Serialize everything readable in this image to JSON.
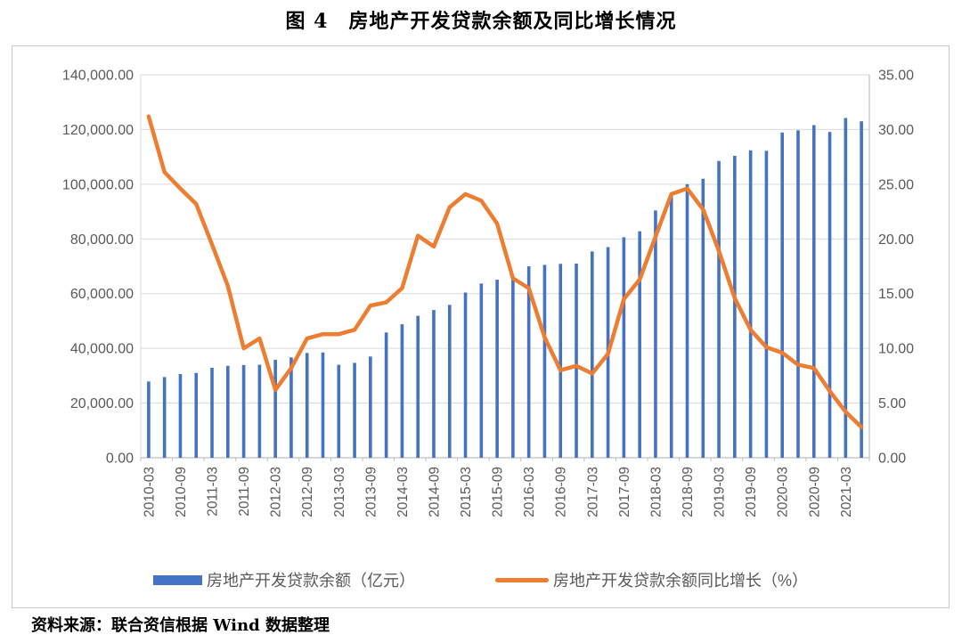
{
  "page": {
    "title": "图 4　房地产开发贷款余额及同比增长情况",
    "source_note": "资料来源：联合资信根据 Wind 数据整理"
  },
  "colors": {
    "bar": "#4472C4",
    "line": "#ED7D31",
    "gridline": "#D9D9D9",
    "axis_line": "#BFBFBF",
    "tick_text": "#595959",
    "chart_border": "#C8C8C8"
  },
  "chart_data": {
    "type": "bar",
    "subtype": "combo-bar-line-dual-axis",
    "title": "图 4　房地产开发贷款余额及同比增长情况",
    "grid": true,
    "legend_position": "bottom",
    "categories": [
      "2010-03",
      "2010-06",
      "2010-09",
      "2010-12",
      "2011-03",
      "2011-06",
      "2011-09",
      "2011-12",
      "2012-03",
      "2012-06",
      "2012-09",
      "2012-12",
      "2013-03",
      "2013-06",
      "2013-09",
      "2013-12",
      "2014-03",
      "2014-06",
      "2014-09",
      "2014-12",
      "2015-03",
      "2015-06",
      "2015-09",
      "2015-12",
      "2016-03",
      "2016-06",
      "2016-09",
      "2016-12",
      "2017-03",
      "2017-06",
      "2017-09",
      "2017-12",
      "2018-03",
      "2018-06",
      "2018-09",
      "2018-12",
      "2019-03",
      "2019-06",
      "2019-09",
      "2019-12",
      "2020-03",
      "2020-06",
      "2020-09",
      "2020-12",
      "2021-03",
      "2021-06"
    ],
    "x_tick_labels": [
      "2010-03",
      "2010-09",
      "2011-03",
      "2011-09",
      "2012-03",
      "2012-09",
      "2013-03",
      "2013-09",
      "2014-03",
      "2014-09",
      "2015-03",
      "2015-09",
      "2016-03",
      "2016-09",
      "2017-03",
      "2017-09",
      "2018-03",
      "2018-09",
      "2019-03",
      "2019-09",
      "2020-03",
      "2020-09",
      "2021-03"
    ],
    "series": [
      {
        "name": "房地产开发贷款余额（亿元）",
        "type": "bar",
        "axis": "left",
        "color": "#4472C4",
        "values": [
          27900,
          29500,
          30600,
          31000,
          32900,
          33600,
          33900,
          34000,
          35800,
          36700,
          38300,
          38500,
          34000,
          34700,
          37000,
          45800,
          48800,
          51900,
          54000,
          55900,
          60400,
          63700,
          65100,
          66200,
          70000,
          70500,
          70900,
          71000,
          75400,
          77000,
          80600,
          82800,
          90400,
          96600,
          100000,
          102000,
          108500,
          110400,
          112400,
          112200,
          118900,
          119700,
          121600,
          119100,
          124200,
          123000
        ]
      },
      {
        "name": "房地产开发贷款余额同比增长（%）",
        "type": "line",
        "axis": "right",
        "color": "#ED7D31",
        "values": [
          31.2,
          26.1,
          24.6,
          23.2,
          19.5,
          15.7,
          10.0,
          10.9,
          6.2,
          8.2,
          10.9,
          11.3,
          11.3,
          11.7,
          13.9,
          14.2,
          15.5,
          20.3,
          19.3,
          22.9,
          24.1,
          23.5,
          21.4,
          16.4,
          15.5,
          11.0,
          8.0,
          8.4,
          7.7,
          9.5,
          14.5,
          16.3,
          20.2,
          24.1,
          24.6,
          22.7,
          18.9,
          14.6,
          11.7,
          10.1,
          9.6,
          8.5,
          8.2,
          6.1,
          4.2,
          2.8
        ]
      }
    ],
    "left_axis": {
      "min": 0,
      "max": 140000,
      "step": 20000,
      "tick_labels": [
        "0.00",
        "20,000.00",
        "40,000.00",
        "60,000.00",
        "80,000.00",
        "100,000.00",
        "120,000.00",
        "140,000.00"
      ]
    },
    "right_axis": {
      "min": 0,
      "max": 35,
      "step": 5,
      "tick_labels": [
        "0.00",
        "5.00",
        "10.00",
        "15.00",
        "20.00",
        "25.00",
        "30.00",
        "35.00"
      ]
    }
  }
}
